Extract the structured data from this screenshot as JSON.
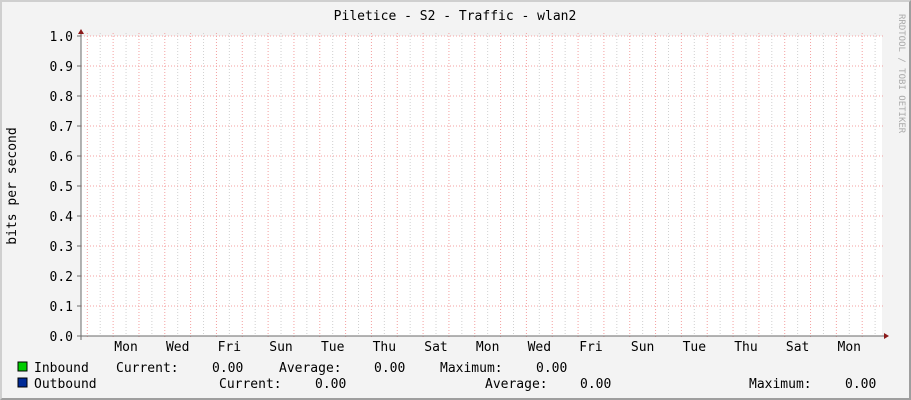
{
  "chart_data": {
    "type": "line",
    "title": "Piletice - S2  - Traffic - wlan2",
    "ylabel": "bits per second",
    "xlabel": "",
    "ylim": [
      0,
      1.0
    ],
    "y_ticks": [
      "0.0",
      "0.1",
      "0.2",
      "0.3",
      "0.4",
      "0.5",
      "0.6",
      "0.7",
      "0.8",
      "0.9",
      "1.0"
    ],
    "x_tick_labels": [
      "Mon",
      "Wed",
      "Fri",
      "Sun",
      "Tue",
      "Thu",
      "Sat",
      "Mon",
      "Wed",
      "Fri",
      "Sun",
      "Tue",
      "Thu",
      "Sat",
      "Mon"
    ],
    "grid": true,
    "watermark": "RRDTOOL / TOBI OETIKER",
    "series": [
      {
        "name": "Inbound",
        "color": "#00cc00",
        "values": [
          0,
          0
        ],
        "current": "0.00",
        "average": "0.00",
        "maximum": "0.00"
      },
      {
        "name": "Outbound",
        "color": "#002a97",
        "values": [
          0,
          0
        ],
        "current": "0.00",
        "average": "0.00",
        "maximum": "0.00"
      }
    ]
  },
  "legend": {
    "current_label": "Current:",
    "average_label": "Average:",
    "maximum_label": "Maximum:"
  },
  "colors": {
    "major_grid": "#f4a0a0",
    "minor_grid": "#d0d0d0",
    "axis": "#6a6a6a",
    "arrow": "#8b1a1a",
    "background": "#f3f3f3",
    "plot": "#ffffff"
  }
}
